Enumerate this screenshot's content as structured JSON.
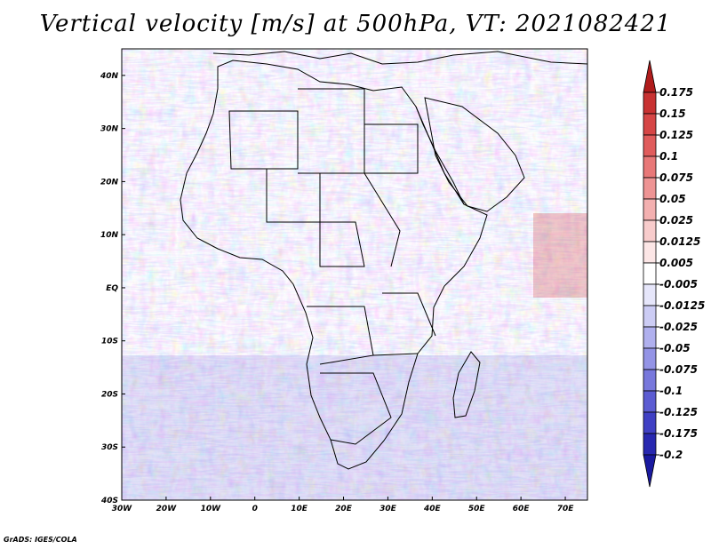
{
  "title": "Vertical velocity [m/s] at 500hPa, VT: 2021082421",
  "footer": "GrADS: IGES/COLA",
  "map": {
    "lon_range": [
      -30,
      75
    ],
    "lat_range": [
      -40,
      45
    ],
    "lat_ticks": [
      {
        "value": 40,
        "label": "40N"
      },
      {
        "value": 30,
        "label": "30N"
      },
      {
        "value": 20,
        "label": "20N"
      },
      {
        "value": 10,
        "label": "10N"
      },
      {
        "value": 0,
        "label": "EQ"
      },
      {
        "value": -10,
        "label": "10S"
      },
      {
        "value": -20,
        "label": "20S"
      },
      {
        "value": -30,
        "label": "30S"
      },
      {
        "value": -40,
        "label": "40S"
      }
    ],
    "lon_ticks": [
      {
        "value": -30,
        "label": "30W"
      },
      {
        "value": -20,
        "label": "20W"
      },
      {
        "value": -10,
        "label": "10W"
      },
      {
        "value": 0,
        "label": "0"
      },
      {
        "value": 10,
        "label": "10E"
      },
      {
        "value": 20,
        "label": "20E"
      },
      {
        "value": 30,
        "label": "30E"
      },
      {
        "value": 40,
        "label": "40E"
      },
      {
        "value": 50,
        "label": "50E"
      },
      {
        "value": 60,
        "label": "60E"
      },
      {
        "value": 70,
        "label": "70E"
      }
    ]
  },
  "colorbar": {
    "labels": [
      "0.175",
      "0.15",
      "0.125",
      "0.1",
      "0.075",
      "0.05",
      "0.025",
      "0.0125",
      "0.005",
      "-0.005",
      "-0.0125",
      "-0.025",
      "-0.05",
      "-0.075",
      "-0.1",
      "-0.125",
      "-0.175",
      "-0.2"
    ],
    "colors": [
      "#b01c1c",
      "#c83232",
      "#d64646",
      "#e05c5c",
      "#e87878",
      "#ee9494",
      "#f3b0b0",
      "#f8cccc",
      "#fce6e6",
      "#ffffff",
      "#e6e6fa",
      "#ccccf4",
      "#b0b0ee",
      "#9494e6",
      "#7878dc",
      "#5c5cd2",
      "#4040c4",
      "#2828b0",
      "#1a1aa0"
    ]
  }
}
